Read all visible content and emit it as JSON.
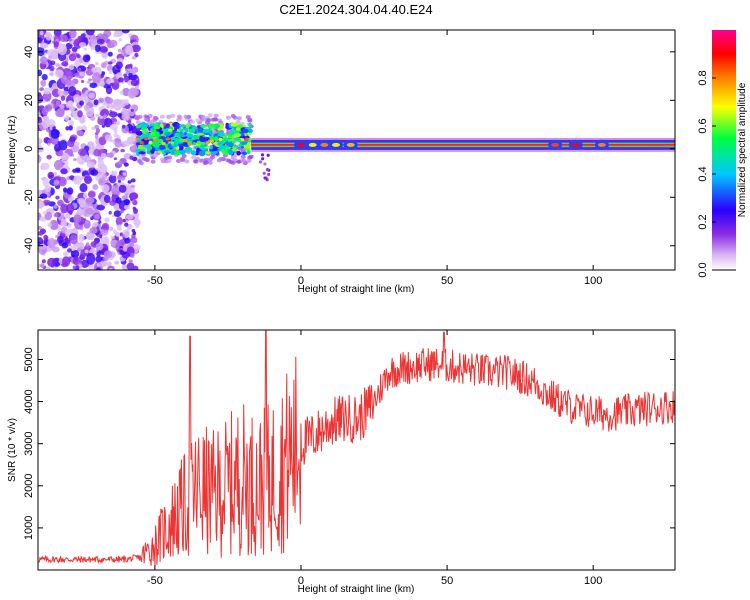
{
  "title": "C2E1.2024.304.04.40.E24",
  "chart_data": [
    {
      "type": "heatmap",
      "xlabel": "Height of straight line (km)",
      "ylabel": "Frequency (Hz)",
      "xlim": [
        -90,
        128
      ],
      "ylim": [
        -50,
        49
      ],
      "xticks": [
        -50,
        0,
        50,
        100
      ],
      "yticks": [
        -40,
        -20,
        0,
        20,
        40
      ],
      "colorbar": {
        "label": "Normalized spectral amplitude",
        "range": [
          0.0,
          1.0
        ],
        "ticks": [
          0.0,
          0.2,
          0.4,
          0.6,
          0.8
        ],
        "tick_labels": [
          "0.0",
          "0.2",
          "0.4",
          "0.6",
          "0.8"
        ],
        "colors": [
          "#ffffff",
          "#cfa0f0",
          "#8a2be2",
          "#2b00ff",
          "#00c8ff",
          "#00ff40",
          "#ffff00",
          "#ff8000",
          "#ff0000",
          "#ff0090"
        ]
      },
      "features": [
        {
          "name": "noise",
          "x": [
            -90,
            -56
          ],
          "freq": [
            -50,
            49
          ],
          "level": 0.3
        },
        {
          "name": "band",
          "x": [
            -56,
            -17
          ],
          "freq": [
            -2,
            10
          ],
          "level": 0.5
        },
        {
          "name": "line",
          "x": [
            -17,
            128
          ],
          "freq": [
            0,
            3
          ],
          "level": 0.95
        }
      ]
    },
    {
      "type": "line",
      "xlabel": "Height of straight line (km)",
      "ylabel": "SNR (10 * v/v)",
      "xlim": [
        -90,
        128
      ],
      "ylim": [
        0,
        5700
      ],
      "xticks": [
        -50,
        0,
        50,
        100
      ],
      "yticks": [
        1000,
        2000,
        3000,
        4000,
        5000
      ],
      "color": "#ee3333",
      "envelope": {
        "x": [
          -90,
          -60,
          -55,
          -50,
          -45,
          -40,
          -35,
          -30,
          -25,
          -20,
          -15,
          -10,
          -5,
          0,
          5,
          10,
          15,
          20,
          25,
          30,
          35,
          40,
          45,
          50,
          55,
          60,
          65,
          70,
          75,
          80,
          85,
          90,
          95,
          100,
          105,
          110,
          115,
          120,
          128
        ],
        "y": [
          250,
          250,
          300,
          600,
          1100,
          1500,
          1900,
          1800,
          2000,
          2200,
          2000,
          2200,
          2600,
          3000,
          3200,
          3500,
          3600,
          3600,
          4000,
          4700,
          4800,
          4850,
          4900,
          4850,
          4800,
          4750,
          4700,
          4700,
          4600,
          4450,
          4150,
          3950,
          3800,
          3750,
          3700,
          3750,
          3800,
          3850,
          3900
        ]
      },
      "peaks": [
        {
          "x": -38,
          "y": 5550
        },
        {
          "x": -12,
          "y": 5700
        },
        {
          "x": 49,
          "y": 5650
        }
      ]
    }
  ]
}
